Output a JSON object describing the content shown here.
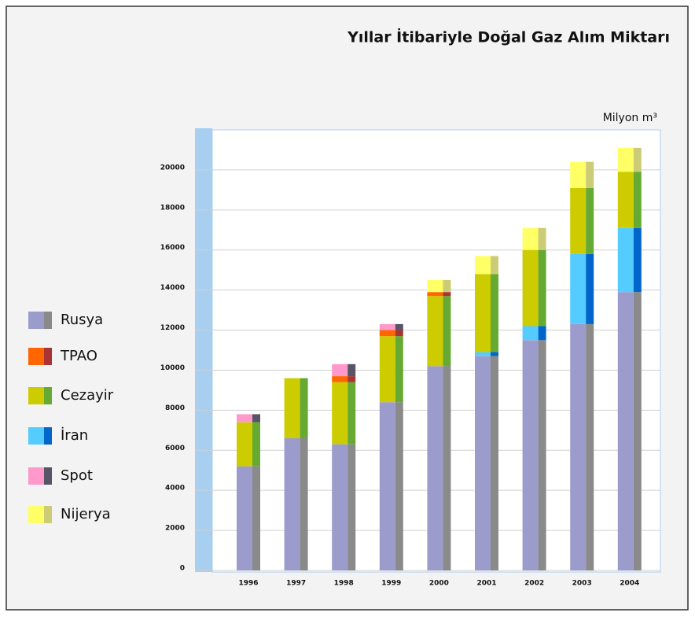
{
  "chart_data": {
    "type": "stacked_bar",
    "title": "Yıllar İtibariyle Doğal Gaz Alım Miktarı",
    "unit_label": "Milyon m³",
    "categories": [
      "1996",
      "1997",
      "1998",
      "1999",
      "2000",
      "2001",
      "2002",
      "2003",
      "2004"
    ],
    "series": [
      {
        "name": "Rusya",
        "color": "#9c9ccc",
        "side_color": "#8a8a8a",
        "values": [
          5200,
          6600,
          6300,
          8400,
          10200,
          10700,
          11500,
          12300,
          13900
        ]
      },
      {
        "name": "İran",
        "color": "#55ccff",
        "side_color": "#0066cc",
        "values": [
          0,
          0,
          0,
          0,
          0,
          200,
          700,
          3500,
          3200
        ]
      },
      {
        "name": "Cezayir",
        "color": "#cccc00",
        "side_color": "#66aa33",
        "values": [
          2200,
          3000,
          3100,
          3300,
          3500,
          3900,
          3800,
          3300,
          2800
        ]
      },
      {
        "name": "TPAO",
        "color": "#ff6600",
        "side_color": "#aa3333",
        "values": [
          0,
          0,
          300,
          300,
          200,
          0,
          0,
          0,
          0
        ]
      },
      {
        "name": "Spot",
        "color": "#ff99cc",
        "side_color": "#555566",
        "values": [
          400,
          0,
          600,
          300,
          0,
          0,
          0,
          0,
          0
        ]
      },
      {
        "name": "Nijerya",
        "color": "#ffff66",
        "side_color": "#cccc77",
        "values": [
          0,
          0,
          0,
          0,
          600,
          900,
          1100,
          1300,
          1200
        ]
      }
    ],
    "legend_order": [
      "Rusya",
      "TPAO",
      "Cezayir",
      "İran",
      "Spot",
      "Nijerya"
    ],
    "ylim": [
      0,
      22000
    ],
    "yticks": [
      0,
      2000,
      4000,
      6000,
      8000,
      10000,
      12000,
      14000,
      16000,
      18000,
      20000
    ],
    "grid": true
  }
}
